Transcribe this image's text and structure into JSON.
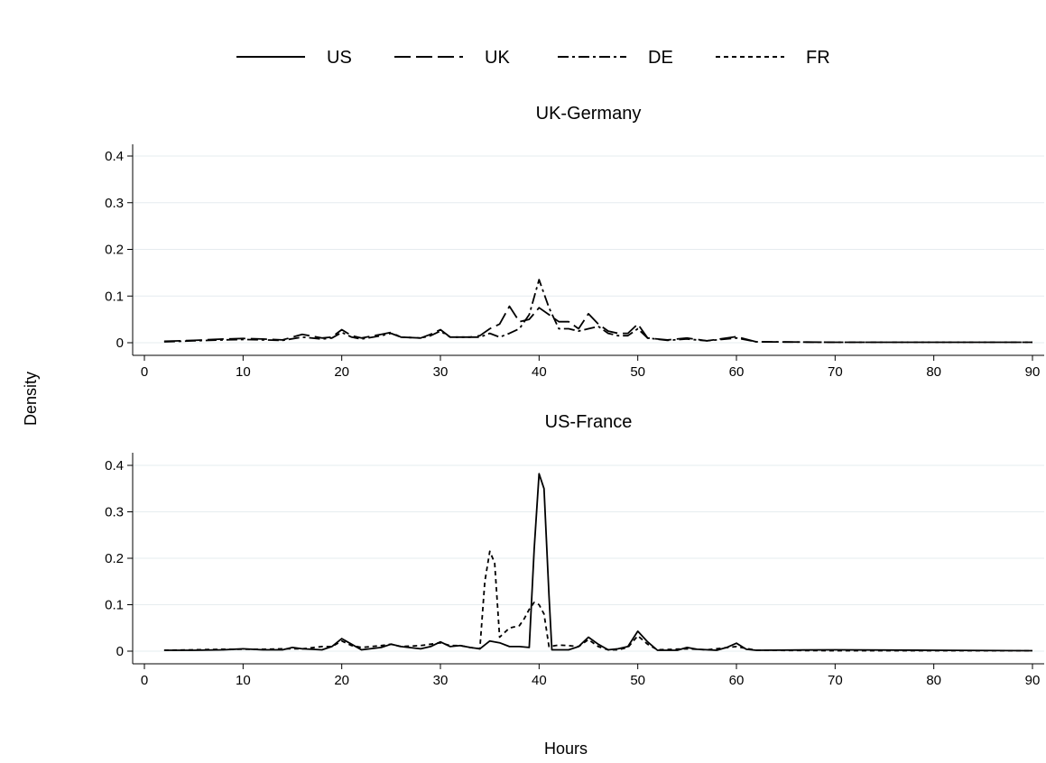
{
  "chart_data": {
    "type": "line",
    "legend": {
      "placement": "top",
      "entries": [
        {
          "label": "US",
          "style": "solid"
        },
        {
          "label": "UK",
          "style": "longdash"
        },
        {
          "label": "DE",
          "style": "dashdot"
        },
        {
          "label": "FR",
          "style": "shortdash"
        }
      ]
    },
    "xlabel": "Hours",
    "ylabel": "Density",
    "xlim": [
      0,
      90
    ],
    "ylim": [
      0,
      0.4
    ],
    "xticks": [
      0,
      10,
      20,
      30,
      40,
      50,
      60,
      70,
      80,
      90
    ],
    "yticks": [
      0,
      0.1,
      0.2,
      0.3,
      0.4
    ],
    "grid": "horizontal",
    "panels": [
      {
        "title": "UK-Germany",
        "series": [
          {
            "name": "UK",
            "style": "longdash",
            "points": [
              [
                2,
                0.003
              ],
              [
                5,
                0.005
              ],
              [
                8,
                0.008
              ],
              [
                10,
                0.009
              ],
              [
                12,
                0.008
              ],
              [
                14,
                0.006
              ],
              [
                16,
                0.018
              ],
              [
                18,
                0.01
              ],
              [
                19,
                0.012
              ],
              [
                20,
                0.028
              ],
              [
                21,
                0.015
              ],
              [
                22,
                0.01
              ],
              [
                24,
                0.018
              ],
              [
                25,
                0.022
              ],
              [
                26,
                0.012
              ],
              [
                28,
                0.01
              ],
              [
                29,
                0.018
              ],
              [
                30,
                0.028
              ],
              [
                31,
                0.012
              ],
              [
                33,
                0.012
              ],
              [
                34,
                0.015
              ],
              [
                35,
                0.03
              ],
              [
                36,
                0.04
              ],
              [
                37,
                0.078
              ],
              [
                38,
                0.045
              ],
              [
                39,
                0.05
              ],
              [
                40,
                0.075
              ],
              [
                41,
                0.06
              ],
              [
                42,
                0.045
              ],
              [
                43,
                0.045
              ],
              [
                44,
                0.03
              ],
              [
                45,
                0.062
              ],
              [
                46,
                0.04
              ],
              [
                47,
                0.025
              ],
              [
                48,
                0.02
              ],
              [
                49,
                0.02
              ],
              [
                50,
                0.04
              ],
              [
                51,
                0.01
              ],
              [
                53,
                0.006
              ],
              [
                55,
                0.01
              ],
              [
                57,
                0.004
              ],
              [
                60,
                0.013
              ],
              [
                62,
                0.002
              ],
              [
                70,
                0.001
              ],
              [
                80,
                0.001
              ],
              [
                90,
                0.001
              ]
            ]
          },
          {
            "name": "DE",
            "style": "dashdot",
            "points": [
              [
                2,
                0.002
              ],
              [
                5,
                0.004
              ],
              [
                8,
                0.006
              ],
              [
                10,
                0.007
              ],
              [
                12,
                0.006
              ],
              [
                14,
                0.005
              ],
              [
                16,
                0.012
              ],
              [
                18,
                0.008
              ],
              [
                19,
                0.01
              ],
              [
                20,
                0.022
              ],
              [
                21,
                0.012
              ],
              [
                22,
                0.008
              ],
              [
                24,
                0.015
              ],
              [
                25,
                0.02
              ],
              [
                26,
                0.012
              ],
              [
                28,
                0.01
              ],
              [
                29,
                0.015
              ],
              [
                30,
                0.025
              ],
              [
                31,
                0.012
              ],
              [
                33,
                0.012
              ],
              [
                34,
                0.012
              ],
              [
                35,
                0.02
              ],
              [
                36,
                0.012
              ],
              [
                37,
                0.02
              ],
              [
                38,
                0.03
              ],
              [
                39,
                0.06
              ],
              [
                40,
                0.135
              ],
              [
                41,
                0.075
              ],
              [
                42,
                0.03
              ],
              [
                43,
                0.03
              ],
              [
                44,
                0.025
              ],
              [
                45,
                0.03
              ],
              [
                46,
                0.035
              ],
              [
                47,
                0.02
              ],
              [
                48,
                0.015
              ],
              [
                49,
                0.015
              ],
              [
                50,
                0.03
              ],
              [
                51,
                0.01
              ],
              [
                53,
                0.005
              ],
              [
                55,
                0.008
              ],
              [
                57,
                0.004
              ],
              [
                60,
                0.01
              ],
              [
                62,
                0.002
              ],
              [
                70,
                0.001
              ],
              [
                80,
                0.001
              ],
              [
                90,
                0.001
              ]
            ]
          }
        ]
      },
      {
        "title": "US-France",
        "series": [
          {
            "name": "US",
            "style": "solid",
            "points": [
              [
                2,
                0.002
              ],
              [
                5,
                0.002
              ],
              [
                8,
                0.003
              ],
              [
                10,
                0.005
              ],
              [
                12,
                0.003
              ],
              [
                14,
                0.003
              ],
              [
                15,
                0.008
              ],
              [
                16,
                0.005
              ],
              [
                18,
                0.003
              ],
              [
                19,
                0.01
              ],
              [
                20,
                0.027
              ],
              [
                21,
                0.015
              ],
              [
                22,
                0.003
              ],
              [
                24,
                0.008
              ],
              [
                25,
                0.015
              ],
              [
                26,
                0.01
              ],
              [
                28,
                0.005
              ],
              [
                29,
                0.01
              ],
              [
                30,
                0.02
              ],
              [
                31,
                0.01
              ],
              [
                32,
                0.012
              ],
              [
                33,
                0.008
              ],
              [
                34,
                0.005
              ],
              [
                35,
                0.022
              ],
              [
                36,
                0.018
              ],
              [
                37,
                0.01
              ],
              [
                38,
                0.01
              ],
              [
                39,
                0.008
              ],
              [
                39.5,
                0.22
              ],
              [
                40,
                0.382
              ],
              [
                40.5,
                0.35
              ],
              [
                41,
                0.12
              ],
              [
                41.3,
                0.003
              ],
              [
                43,
                0.003
              ],
              [
                44,
                0.01
              ],
              [
                45,
                0.03
              ],
              [
                46,
                0.015
              ],
              [
                47,
                0.003
              ],
              [
                48,
                0.005
              ],
              [
                49,
                0.01
              ],
              [
                50,
                0.043
              ],
              [
                51,
                0.02
              ],
              [
                52,
                0.002
              ],
              [
                54,
                0.002
              ],
              [
                55,
                0.008
              ],
              [
                56,
                0.004
              ],
              [
                58,
                0.002
              ],
              [
                59,
                0.008
              ],
              [
                60,
                0.017
              ],
              [
                61,
                0.004
              ],
              [
                62,
                0.002
              ],
              [
                70,
                0.003
              ],
              [
                80,
                0.002
              ],
              [
                90,
                0.001
              ]
            ]
          },
          {
            "name": "FR",
            "style": "shortdash",
            "points": [
              [
                2,
                0.002
              ],
              [
                5,
                0.003
              ],
              [
                8,
                0.004
              ],
              [
                10,
                0.004
              ],
              [
                12,
                0.004
              ],
              [
                14,
                0.005
              ],
              [
                16,
                0.005
              ],
              [
                18,
                0.01
              ],
              [
                19,
                0.01
              ],
              [
                20,
                0.022
              ],
              [
                21,
                0.012
              ],
              [
                22,
                0.008
              ],
              [
                24,
                0.012
              ],
              [
                25,
                0.015
              ],
              [
                26,
                0.01
              ],
              [
                28,
                0.012
              ],
              [
                29,
                0.015
              ],
              [
                30,
                0.018
              ],
              [
                31,
                0.012
              ],
              [
                32,
                0.012
              ],
              [
                33,
                0.008
              ],
              [
                34,
                0.005
              ],
              [
                34.5,
                0.15
              ],
              [
                35,
                0.215
              ],
              [
                35.5,
                0.19
              ],
              [
                36,
                0.03
              ],
              [
                37,
                0.05
              ],
              [
                38,
                0.055
              ],
              [
                38.5,
                0.07
              ],
              [
                39,
                0.09
              ],
              [
                39.5,
                0.105
              ],
              [
                40,
                0.1
              ],
              [
                40.5,
                0.08
              ],
              [
                41,
                0.01
              ],
              [
                42,
                0.013
              ],
              [
                43,
                0.012
              ],
              [
                44,
                0.01
              ],
              [
                45,
                0.025
              ],
              [
                46,
                0.01
              ],
              [
                47,
                0.003
              ],
              [
                48,
                0.003
              ],
              [
                49,
                0.008
              ],
              [
                50,
                0.033
              ],
              [
                51,
                0.015
              ],
              [
                52,
                0.003
              ],
              [
                55,
                0.005
              ],
              [
                57,
                0.003
              ],
              [
                60,
                0.01
              ],
              [
                62,
                0.002
              ],
              [
                70,
                0.001
              ],
              [
                80,
                0.001
              ],
              [
                90,
                0.001
              ]
            ]
          }
        ]
      }
    ]
  }
}
